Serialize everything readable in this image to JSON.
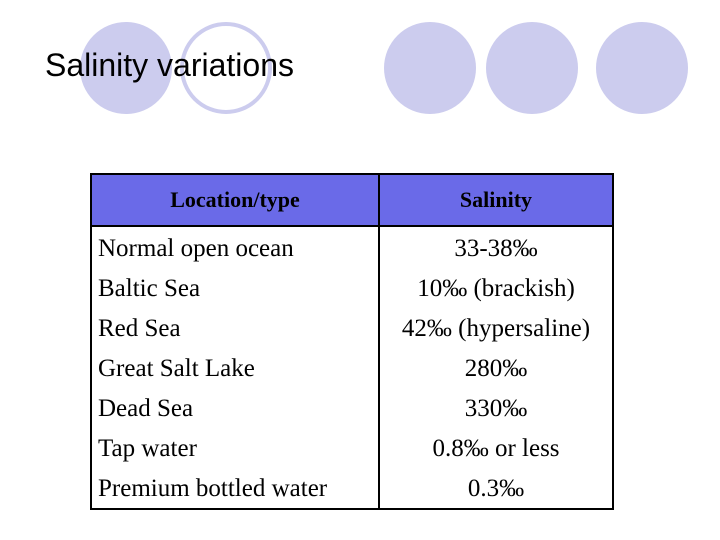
{
  "slide": {
    "title": "Salinity variations",
    "decoration_colors": {
      "circle_fill": "#ccccee",
      "header_fill": "#6a6ae8"
    }
  },
  "table": {
    "headers": {
      "location": "Location/type",
      "salinity": "Salinity"
    },
    "rows": [
      {
        "location": "Normal open ocean",
        "salinity": "33-38‰"
      },
      {
        "location": "Baltic Sea",
        "salinity": "10‰ (brackish)"
      },
      {
        "location": "Red Sea",
        "salinity": "42‰ (hypersaline)"
      },
      {
        "location": "Great Salt Lake",
        "salinity": "280‰"
      },
      {
        "location": "Dead Sea",
        "salinity": "330‰"
      },
      {
        "location": "Tap water",
        "salinity": "0.8‰ or less"
      },
      {
        "location": "Premium bottled water",
        "salinity": "0.3‰"
      }
    ]
  }
}
